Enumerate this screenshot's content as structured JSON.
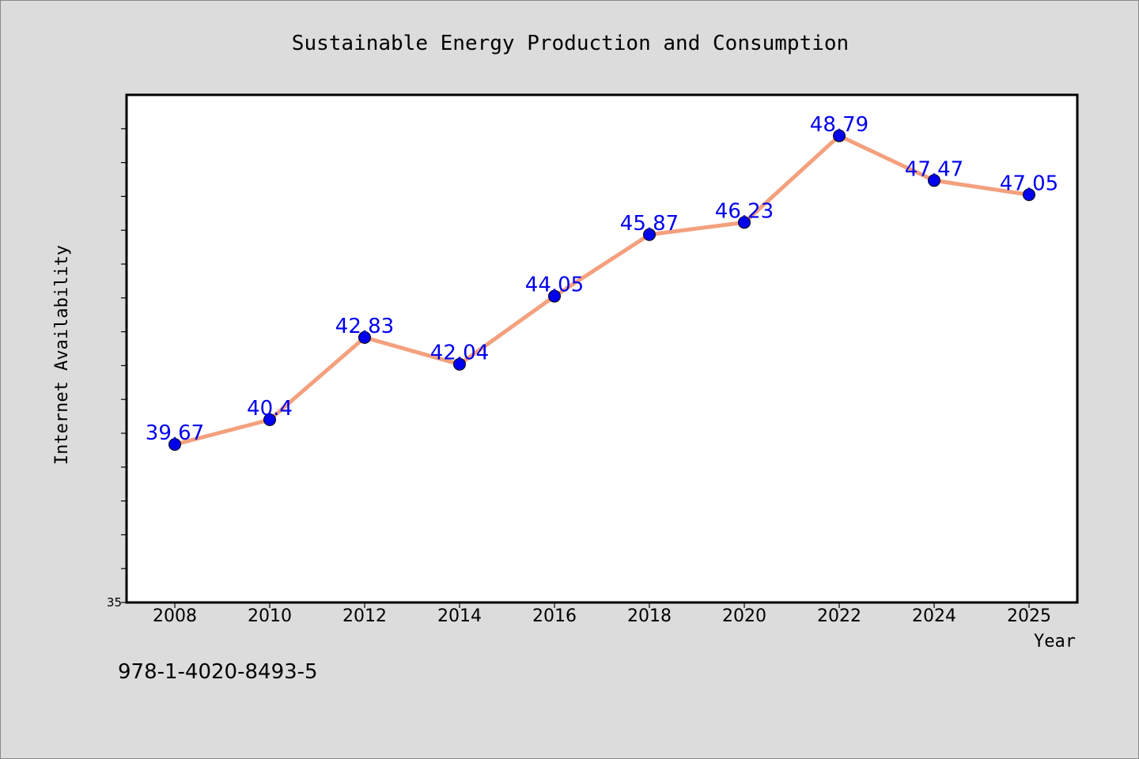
{
  "chart_data": {
    "type": "line",
    "title": "Sustainable Energy Production and Consumption",
    "xlabel": "Year",
    "ylabel": "Internet Availability",
    "x": [
      "2008",
      "2010",
      "2012",
      "2014",
      "2016",
      "2018",
      "2020",
      "2022",
      "2024",
      "2025"
    ],
    "series": [
      {
        "values": [
          39.67,
          40.4,
          42.83,
          42.04,
          44.05,
          45.87,
          46.23,
          48.79,
          47.47,
          47.05
        ],
        "data_labels": [
          "39.67",
          "40.4",
          "42.83",
          "42.04",
          "44.05",
          "45.87",
          "46.23",
          "48.79",
          "47.47",
          "47.05"
        ]
      }
    ],
    "ylim": [
      35,
      50
    ],
    "y_tick_labels": [
      "35"
    ],
    "y_minor_tick_step": 1,
    "grid": false,
    "legend": "none",
    "colors": {
      "line": "#f4a07e",
      "marker": "#0000ee",
      "data_label": "#0000ee",
      "plot_background": "#ffffff",
      "figure_background": "#dcdcdc"
    }
  },
  "footer": {
    "isbn": "978-1-4020-8493-5"
  }
}
